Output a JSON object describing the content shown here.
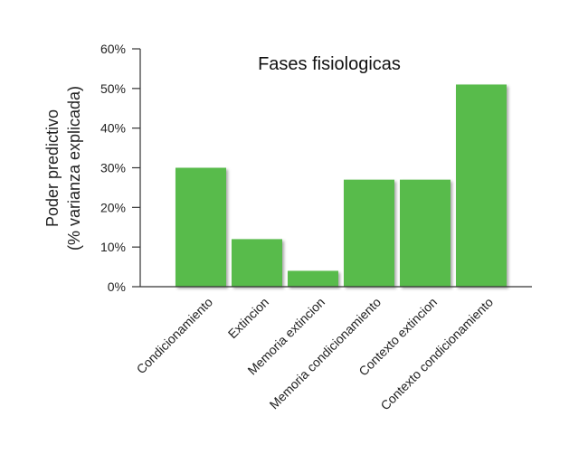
{
  "chart_data": {
    "type": "bar",
    "title": "Fases fisiologicas",
    "ylabel_lines": [
      "Poder predictivo",
      "(% varianza explicada)"
    ],
    "xlabel": "",
    "categories": [
      "Condicionamiento",
      "Extincion",
      "Memoria extincion",
      "Memoria condicionamiento",
      "Contexto extincion",
      "Contexto condicionamiento"
    ],
    "values": [
      30,
      12,
      4,
      27,
      27,
      51
    ],
    "unit": "%",
    "ylim": [
      0,
      60
    ],
    "yticks": [
      "0%",
      "10%",
      "20%",
      "30%",
      "40%",
      "50%",
      "60%"
    ],
    "grid": false,
    "legend": "none",
    "bar_color": "#58bb4b",
    "axis_color": "#333333"
  }
}
